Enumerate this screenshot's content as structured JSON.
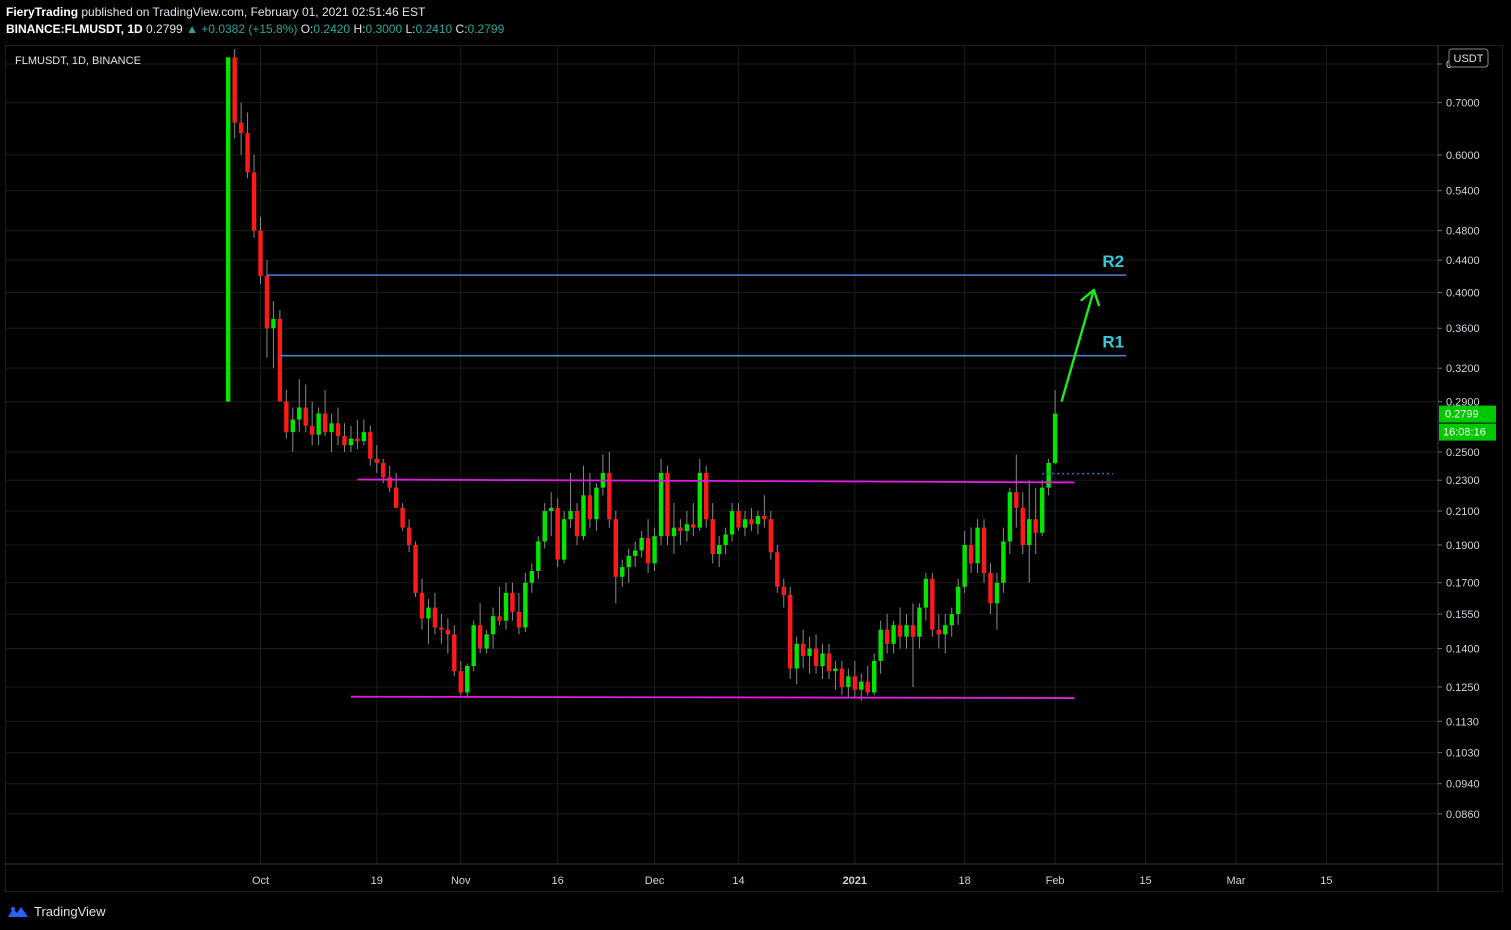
{
  "header": {
    "author": "FieryTrading",
    "published_text": "published on TradingView.com, February 01, 2021 02:51:46 EST",
    "symbol_line": "BINANCE:FLMUSDT, 1D",
    "last": "0.2799",
    "change": "+0.0382 (+15.8%)",
    "ohlc": [
      {
        "k": "O:",
        "v": "0.2420"
      },
      {
        "k": "H:",
        "v": "0.3000"
      },
      {
        "k": "L:",
        "v": "0.2410"
      },
      {
        "k": "C:",
        "v": "0.2799"
      }
    ]
  },
  "chart_label": "FLMUSDT, 1D, BINANCE",
  "currency_badge": "USDT",
  "price_badge": "0.2799",
  "countdown_badge": "16:08:16",
  "colors": {
    "background": "#000000",
    "grid": "#1c1c1c",
    "up": "#00e600",
    "down": "#ff1a1a",
    "resistance": "#4a7fd6",
    "range": "#e11de1",
    "label": "#36c9d9",
    "arrow": "#1ee81e",
    "badge_bg": "#00c800"
  },
  "footer": {
    "brand": "TradingView"
  },
  "chart_data": {
    "type": "candlestick",
    "scale": "log",
    "title": "",
    "ylim": [
      0.078,
      0.82
    ],
    "y_ticks": [
      "0.0860",
      "0.0940",
      "0.1030",
      "0.1130",
      "0.1250",
      "0.1400",
      "0.1550",
      "0.1700",
      "0.1900",
      "0.2100",
      "0.2300",
      "0.2500",
      "0.2900",
      "0.3200",
      "0.3600",
      "0.4000",
      "0.4400",
      "0.4800",
      "0.5400",
      "0.6000",
      "0.7000",
      "0"
    ],
    "x_ticks": [
      "Oct",
      "19",
      "Nov",
      "16",
      "Dec",
      "14",
      "2021",
      "18",
      "Feb",
      "15",
      "Mar",
      "15"
    ],
    "x_tick_dates": [
      "2020-10-01",
      "2020-10-19",
      "2020-11-01",
      "2020-11-16",
      "2020-12-01",
      "2020-12-14",
      "2021-01-01",
      "2021-01-18",
      "2021-02-01",
      "2021-02-15",
      "2021-03-01",
      "2021-03-15"
    ],
    "candles": [
      {
        "d": "2020-09-26",
        "o": 0.29,
        "h": 0.8,
        "l": 0.29,
        "c": 0.8
      },
      {
        "d": "2020-09-27",
        "o": 0.8,
        "h": 0.82,
        "l": 0.63,
        "c": 0.66
      },
      {
        "d": "2020-09-28",
        "o": 0.66,
        "h": 0.7,
        "l": 0.6,
        "c": 0.64
      },
      {
        "d": "2020-09-29",
        "o": 0.64,
        "h": 0.68,
        "l": 0.56,
        "c": 0.57
      },
      {
        "d": "2020-09-30",
        "o": 0.57,
        "h": 0.6,
        "l": 0.47,
        "c": 0.48
      },
      {
        "d": "2020-10-01",
        "o": 0.48,
        "h": 0.5,
        "l": 0.41,
        "c": 0.42
      },
      {
        "d": "2020-10-02",
        "o": 0.42,
        "h": 0.44,
        "l": 0.33,
        "c": 0.36
      },
      {
        "d": "2020-10-03",
        "o": 0.36,
        "h": 0.39,
        "l": 0.32,
        "c": 0.37
      },
      {
        "d": "2020-10-04",
        "o": 0.37,
        "h": 0.38,
        "l": 0.29,
        "c": 0.29
      },
      {
        "d": "2020-10-05",
        "o": 0.29,
        "h": 0.3,
        "l": 0.26,
        "c": 0.265
      },
      {
        "d": "2020-10-06",
        "o": 0.265,
        "h": 0.285,
        "l": 0.25,
        "c": 0.275
      },
      {
        "d": "2020-10-07",
        "o": 0.275,
        "h": 0.31,
        "l": 0.265,
        "c": 0.285
      },
      {
        "d": "2020-10-08",
        "o": 0.285,
        "h": 0.305,
        "l": 0.265,
        "c": 0.27
      },
      {
        "d": "2020-10-09",
        "o": 0.27,
        "h": 0.29,
        "l": 0.255,
        "c": 0.263
      },
      {
        "d": "2020-10-10",
        "o": 0.263,
        "h": 0.285,
        "l": 0.255,
        "c": 0.28
      },
      {
        "d": "2020-10-11",
        "o": 0.28,
        "h": 0.3,
        "l": 0.262,
        "c": 0.265
      },
      {
        "d": "2020-10-12",
        "o": 0.265,
        "h": 0.28,
        "l": 0.25,
        "c": 0.272
      },
      {
        "d": "2020-10-13",
        "o": 0.272,
        "h": 0.285,
        "l": 0.255,
        "c": 0.262
      },
      {
        "d": "2020-10-14",
        "o": 0.262,
        "h": 0.272,
        "l": 0.25,
        "c": 0.255
      },
      {
        "d": "2020-10-15",
        "o": 0.255,
        "h": 0.27,
        "l": 0.25,
        "c": 0.26
      },
      {
        "d": "2020-10-16",
        "o": 0.26,
        "h": 0.275,
        "l": 0.252,
        "c": 0.258
      },
      {
        "d": "2020-10-17",
        "o": 0.258,
        "h": 0.275,
        "l": 0.255,
        "c": 0.265
      },
      {
        "d": "2020-10-18",
        "o": 0.265,
        "h": 0.27,
        "l": 0.24,
        "c": 0.245
      },
      {
        "d": "2020-10-19",
        "o": 0.245,
        "h": 0.255,
        "l": 0.235,
        "c": 0.242
      },
      {
        "d": "2020-10-20",
        "o": 0.242,
        "h": 0.245,
        "l": 0.228,
        "c": 0.232
      },
      {
        "d": "2020-10-21",
        "o": 0.232,
        "h": 0.24,
        "l": 0.222,
        "c": 0.225
      },
      {
        "d": "2020-10-22",
        "o": 0.225,
        "h": 0.235,
        "l": 0.212,
        "c": 0.212
      },
      {
        "d": "2020-10-23",
        "o": 0.212,
        "h": 0.215,
        "l": 0.198,
        "c": 0.2
      },
      {
        "d": "2020-10-24",
        "o": 0.2,
        "h": 0.205,
        "l": 0.186,
        "c": 0.19
      },
      {
        "d": "2020-10-25",
        "o": 0.19,
        "h": 0.192,
        "l": 0.163,
        "c": 0.165
      },
      {
        "d": "2020-10-26",
        "o": 0.165,
        "h": 0.172,
        "l": 0.148,
        "c": 0.153
      },
      {
        "d": "2020-10-27",
        "o": 0.153,
        "h": 0.162,
        "l": 0.142,
        "c": 0.158
      },
      {
        "d": "2020-10-28",
        "o": 0.158,
        "h": 0.165,
        "l": 0.146,
        "c": 0.149
      },
      {
        "d": "2020-10-29",
        "o": 0.149,
        "h": 0.155,
        "l": 0.142,
        "c": 0.148
      },
      {
        "d": "2020-10-30",
        "o": 0.148,
        "h": 0.153,
        "l": 0.138,
        "c": 0.146
      },
      {
        "d": "2020-10-31",
        "o": 0.146,
        "h": 0.15,
        "l": 0.129,
        "c": 0.131
      },
      {
        "d": "2020-11-01",
        "o": 0.131,
        "h": 0.135,
        "l": 0.122,
        "c": 0.123
      },
      {
        "d": "2020-11-02",
        "o": 0.123,
        "h": 0.134,
        "l": 0.121,
        "c": 0.133
      },
      {
        "d": "2020-11-03",
        "o": 0.133,
        "h": 0.152,
        "l": 0.131,
        "c": 0.15
      },
      {
        "d": "2020-11-04",
        "o": 0.15,
        "h": 0.16,
        "l": 0.138,
        "c": 0.14
      },
      {
        "d": "2020-11-05",
        "o": 0.14,
        "h": 0.148,
        "l": 0.138,
        "c": 0.146
      },
      {
        "d": "2020-11-06",
        "o": 0.146,
        "h": 0.158,
        "l": 0.14,
        "c": 0.154
      },
      {
        "d": "2020-11-07",
        "o": 0.154,
        "h": 0.168,
        "l": 0.15,
        "c": 0.152
      },
      {
        "d": "2020-11-08",
        "o": 0.152,
        "h": 0.17,
        "l": 0.148,
        "c": 0.165
      },
      {
        "d": "2020-11-09",
        "o": 0.165,
        "h": 0.17,
        "l": 0.152,
        "c": 0.156
      },
      {
        "d": "2020-11-10",
        "o": 0.156,
        "h": 0.165,
        "l": 0.146,
        "c": 0.149
      },
      {
        "d": "2020-11-11",
        "o": 0.149,
        "h": 0.175,
        "l": 0.147,
        "c": 0.17
      },
      {
        "d": "2020-11-12",
        "o": 0.17,
        "h": 0.18,
        "l": 0.165,
        "c": 0.176
      },
      {
        "d": "2020-11-13",
        "o": 0.176,
        "h": 0.195,
        "l": 0.172,
        "c": 0.192
      },
      {
        "d": "2020-11-14",
        "o": 0.192,
        "h": 0.215,
        "l": 0.188,
        "c": 0.21
      },
      {
        "d": "2020-11-15",
        "o": 0.21,
        "h": 0.222,
        "l": 0.195,
        "c": 0.212
      },
      {
        "d": "2020-11-16",
        "o": 0.212,
        "h": 0.218,
        "l": 0.178,
        "c": 0.182
      },
      {
        "d": "2020-11-17",
        "o": 0.182,
        "h": 0.21,
        "l": 0.18,
        "c": 0.205
      },
      {
        "d": "2020-11-18",
        "o": 0.205,
        "h": 0.235,
        "l": 0.2,
        "c": 0.21
      },
      {
        "d": "2020-11-19",
        "o": 0.21,
        "h": 0.215,
        "l": 0.19,
        "c": 0.195
      },
      {
        "d": "2020-11-20",
        "o": 0.195,
        "h": 0.24,
        "l": 0.193,
        "c": 0.22
      },
      {
        "d": "2020-11-21",
        "o": 0.22,
        "h": 0.235,
        "l": 0.2,
        "c": 0.205
      },
      {
        "d": "2020-11-22",
        "o": 0.205,
        "h": 0.228,
        "l": 0.198,
        "c": 0.225
      },
      {
        "d": "2020-11-23",
        "o": 0.225,
        "h": 0.248,
        "l": 0.22,
        "c": 0.235
      },
      {
        "d": "2020-11-24",
        "o": 0.235,
        "h": 0.25,
        "l": 0.2,
        "c": 0.205
      },
      {
        "d": "2020-11-25",
        "o": 0.205,
        "h": 0.21,
        "l": 0.16,
        "c": 0.173
      },
      {
        "d": "2020-11-26",
        "o": 0.173,
        "h": 0.182,
        "l": 0.168,
        "c": 0.178
      },
      {
        "d": "2020-11-27",
        "o": 0.178,
        "h": 0.188,
        "l": 0.17,
        "c": 0.184
      },
      {
        "d": "2020-11-28",
        "o": 0.184,
        "h": 0.192,
        "l": 0.178,
        "c": 0.187
      },
      {
        "d": "2020-11-29",
        "o": 0.187,
        "h": 0.198,
        "l": 0.183,
        "c": 0.194
      },
      {
        "d": "2020-11-30",
        "o": 0.194,
        "h": 0.205,
        "l": 0.175,
        "c": 0.18
      },
      {
        "d": "2020-12-01",
        "o": 0.18,
        "h": 0.2,
        "l": 0.176,
        "c": 0.195
      },
      {
        "d": "2020-12-02",
        "o": 0.195,
        "h": 0.245,
        "l": 0.19,
        "c": 0.235
      },
      {
        "d": "2020-12-03",
        "o": 0.235,
        "h": 0.24,
        "l": 0.19,
        "c": 0.195
      },
      {
        "d": "2020-12-04",
        "o": 0.195,
        "h": 0.215,
        "l": 0.185,
        "c": 0.2
      },
      {
        "d": "2020-12-05",
        "o": 0.2,
        "h": 0.205,
        "l": 0.19,
        "c": 0.198
      },
      {
        "d": "2020-12-06",
        "o": 0.198,
        "h": 0.21,
        "l": 0.192,
        "c": 0.202
      },
      {
        "d": "2020-12-07",
        "o": 0.202,
        "h": 0.215,
        "l": 0.195,
        "c": 0.2
      },
      {
        "d": "2020-12-08",
        "o": 0.2,
        "h": 0.245,
        "l": 0.198,
        "c": 0.235
      },
      {
        "d": "2020-12-09",
        "o": 0.235,
        "h": 0.24,
        "l": 0.2,
        "c": 0.205
      },
      {
        "d": "2020-12-10",
        "o": 0.205,
        "h": 0.215,
        "l": 0.18,
        "c": 0.185
      },
      {
        "d": "2020-12-11",
        "o": 0.185,
        "h": 0.195,
        "l": 0.178,
        "c": 0.19
      },
      {
        "d": "2020-12-12",
        "o": 0.19,
        "h": 0.2,
        "l": 0.185,
        "c": 0.196
      },
      {
        "d": "2020-12-13",
        "o": 0.196,
        "h": 0.215,
        "l": 0.192,
        "c": 0.21
      },
      {
        "d": "2020-12-14",
        "o": 0.21,
        "h": 0.215,
        "l": 0.198,
        "c": 0.2
      },
      {
        "d": "2020-12-15",
        "o": 0.2,
        "h": 0.21,
        "l": 0.195,
        "c": 0.205
      },
      {
        "d": "2020-12-16",
        "o": 0.205,
        "h": 0.212,
        "l": 0.198,
        "c": 0.202
      },
      {
        "d": "2020-12-17",
        "o": 0.202,
        "h": 0.21,
        "l": 0.196,
        "c": 0.207
      },
      {
        "d": "2020-12-18",
        "o": 0.207,
        "h": 0.22,
        "l": 0.2,
        "c": 0.205
      },
      {
        "d": "2020-12-19",
        "o": 0.205,
        "h": 0.21,
        "l": 0.182,
        "c": 0.186
      },
      {
        "d": "2020-12-20",
        "o": 0.186,
        "h": 0.19,
        "l": 0.165,
        "c": 0.168
      },
      {
        "d": "2020-12-21",
        "o": 0.168,
        "h": 0.172,
        "l": 0.158,
        "c": 0.164
      },
      {
        "d": "2020-12-22",
        "o": 0.164,
        "h": 0.168,
        "l": 0.128,
        "c": 0.132
      },
      {
        "d": "2020-12-23",
        "o": 0.132,
        "h": 0.145,
        "l": 0.126,
        "c": 0.142
      },
      {
        "d": "2020-12-24",
        "o": 0.142,
        "h": 0.148,
        "l": 0.132,
        "c": 0.137
      },
      {
        "d": "2020-12-25",
        "o": 0.137,
        "h": 0.145,
        "l": 0.13,
        "c": 0.14
      },
      {
        "d": "2020-12-26",
        "o": 0.14,
        "h": 0.146,
        "l": 0.13,
        "c": 0.133
      },
      {
        "d": "2020-12-27",
        "o": 0.133,
        "h": 0.142,
        "l": 0.128,
        "c": 0.138
      },
      {
        "d": "2020-12-28",
        "o": 0.138,
        "h": 0.142,
        "l": 0.128,
        "c": 0.131
      },
      {
        "d": "2020-12-29",
        "o": 0.131,
        "h": 0.135,
        "l": 0.124,
        "c": 0.132
      },
      {
        "d": "2020-12-30",
        "o": 0.132,
        "h": 0.135,
        "l": 0.122,
        "c": 0.125
      },
      {
        "d": "2020-12-31",
        "o": 0.125,
        "h": 0.132,
        "l": 0.121,
        "c": 0.129
      },
      {
        "d": "2021-01-01",
        "o": 0.129,
        "h": 0.135,
        "l": 0.121,
        "c": 0.124
      },
      {
        "d": "2021-01-02",
        "o": 0.124,
        "h": 0.13,
        "l": 0.12,
        "c": 0.127
      },
      {
        "d": "2021-01-03",
        "o": 0.127,
        "h": 0.133,
        "l": 0.122,
        "c": 0.123
      },
      {
        "d": "2021-01-04",
        "o": 0.123,
        "h": 0.138,
        "l": 0.122,
        "c": 0.135
      },
      {
        "d": "2021-01-05",
        "o": 0.135,
        "h": 0.152,
        "l": 0.13,
        "c": 0.148
      },
      {
        "d": "2021-01-06",
        "o": 0.148,
        "h": 0.155,
        "l": 0.138,
        "c": 0.142
      },
      {
        "d": "2021-01-07",
        "o": 0.142,
        "h": 0.152,
        "l": 0.138,
        "c": 0.15
      },
      {
        "d": "2021-01-08",
        "o": 0.15,
        "h": 0.158,
        "l": 0.14,
        "c": 0.145
      },
      {
        "d": "2021-01-09",
        "o": 0.145,
        "h": 0.155,
        "l": 0.14,
        "c": 0.15
      },
      {
        "d": "2021-01-10",
        "o": 0.15,
        "h": 0.16,
        "l": 0.125,
        "c": 0.145
      },
      {
        "d": "2021-01-11",
        "o": 0.145,
        "h": 0.16,
        "l": 0.14,
        "c": 0.158
      },
      {
        "d": "2021-01-12",
        "o": 0.158,
        "h": 0.175,
        "l": 0.152,
        "c": 0.172
      },
      {
        "d": "2021-01-13",
        "o": 0.172,
        "h": 0.175,
        "l": 0.145,
        "c": 0.148
      },
      {
        "d": "2021-01-14",
        "o": 0.148,
        "h": 0.155,
        "l": 0.14,
        "c": 0.146
      },
      {
        "d": "2021-01-15",
        "o": 0.146,
        "h": 0.155,
        "l": 0.138,
        "c": 0.15
      },
      {
        "d": "2021-01-16",
        "o": 0.15,
        "h": 0.158,
        "l": 0.145,
        "c": 0.155
      },
      {
        "d": "2021-01-17",
        "o": 0.155,
        "h": 0.172,
        "l": 0.15,
        "c": 0.168
      },
      {
        "d": "2021-01-18",
        "o": 0.168,
        "h": 0.198,
        "l": 0.165,
        "c": 0.19
      },
      {
        "d": "2021-01-19",
        "o": 0.19,
        "h": 0.2,
        "l": 0.175,
        "c": 0.18
      },
      {
        "d": "2021-01-20",
        "o": 0.18,
        "h": 0.205,
        "l": 0.175,
        "c": 0.2
      },
      {
        "d": "2021-01-21",
        "o": 0.2,
        "h": 0.205,
        "l": 0.17,
        "c": 0.175
      },
      {
        "d": "2021-01-22",
        "o": 0.175,
        "h": 0.18,
        "l": 0.155,
        "c": 0.16
      },
      {
        "d": "2021-01-23",
        "o": 0.16,
        "h": 0.175,
        "l": 0.148,
        "c": 0.17
      },
      {
        "d": "2021-01-24",
        "o": 0.17,
        "h": 0.2,
        "l": 0.165,
        "c": 0.192
      },
      {
        "d": "2021-01-25",
        "o": 0.192,
        "h": 0.225,
        "l": 0.185,
        "c": 0.222
      },
      {
        "d": "2021-01-26",
        "o": 0.222,
        "h": 0.248,
        "l": 0.2,
        "c": 0.212
      },
      {
        "d": "2021-01-27",
        "o": 0.212,
        "h": 0.222,
        "l": 0.185,
        "c": 0.19
      },
      {
        "d": "2021-01-28",
        "o": 0.19,
        "h": 0.23,
        "l": 0.17,
        "c": 0.205
      },
      {
        "d": "2021-01-29",
        "o": 0.205,
        "h": 0.225,
        "l": 0.185,
        "c": 0.197
      },
      {
        "d": "2021-01-30",
        "o": 0.197,
        "h": 0.23,
        "l": 0.195,
        "c": 0.225
      },
      {
        "d": "2021-01-31",
        "o": 0.225,
        "h": 0.245,
        "l": 0.22,
        "c": 0.242
      },
      {
        "d": "2021-02-01",
        "o": 0.242,
        "h": 0.3,
        "l": 0.241,
        "c": 0.2799
      }
    ],
    "annotations": {
      "resistance_lines": [
        {
          "label": "R2",
          "price": 0.421,
          "from": "2020-10-02",
          "to": "2021-02-12"
        },
        {
          "label": "R1",
          "price": 0.332,
          "from": "2020-10-04",
          "to": "2021-02-12"
        }
      ],
      "range_lines": [
        {
          "name": "upper",
          "from": {
            "d": "2020-10-16",
            "p": 0.2305
          },
          "to": {
            "d": "2021-02-04",
            "p": 0.2285
          }
        },
        {
          "name": "lower",
          "from": {
            "d": "2020-10-15",
            "p": 0.1215
          },
          "to": {
            "d": "2021-02-04",
            "p": 0.121
          }
        }
      ],
      "dotted_line": {
        "price": 0.2345,
        "from": "2021-01-30",
        "to": "2021-02-10"
      },
      "arrow": {
        "from": {
          "d": "2021-02-02",
          "p": 0.29
        },
        "to": {
          "d": "2021-02-07",
          "p": 0.403
        }
      }
    }
  }
}
